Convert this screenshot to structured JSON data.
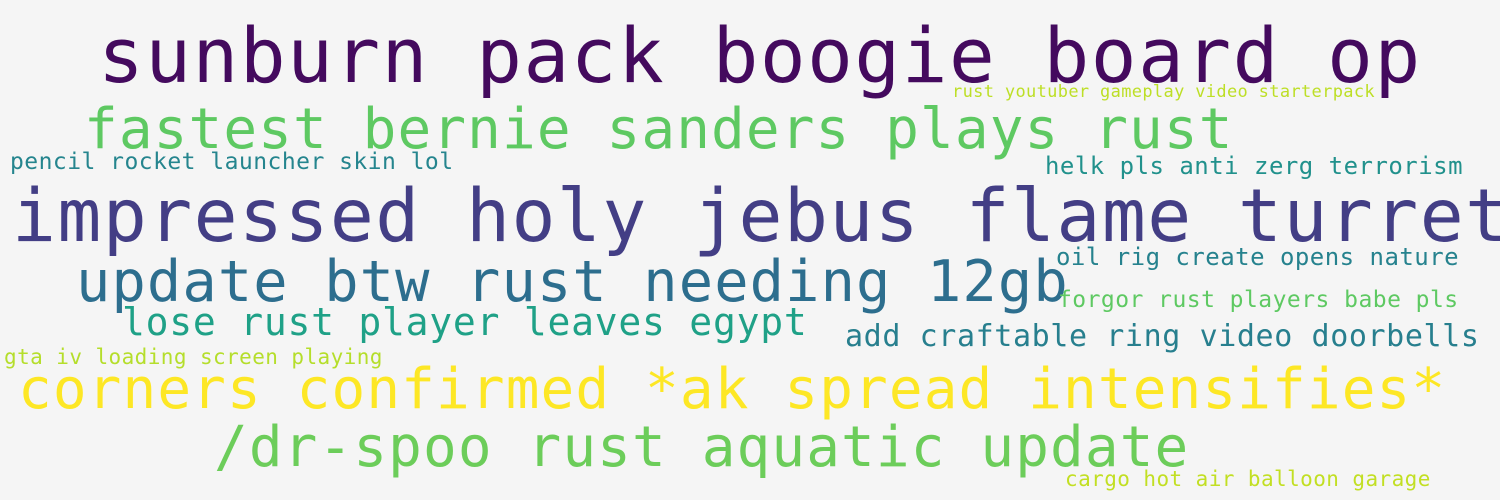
{
  "words": [
    {
      "text": "sunburn pack boogie board op",
      "color": "#440a5e"
    },
    {
      "text": "rust youtuber gameplay video starterpack",
      "color": "#bddf26"
    },
    {
      "text": "fastest bernie sanders plays rust",
      "color": "#5ec962"
    },
    {
      "text": "pencil rocket launcher skin lol",
      "color": "#25858e"
    },
    {
      "text": "helk pls anti zerg terrorism",
      "color": "#21918c"
    },
    {
      "text": "impressed holy jebus flame turret",
      "color": "#433e85"
    },
    {
      "text": "oil rig create opens nature",
      "color": "#26828e"
    },
    {
      "text": "update btw rust needing 12gb",
      "color": "#2d6e8e"
    },
    {
      "text": "forgor rust players babe pls",
      "color": "#5ec962"
    },
    {
      "text": "lose rust player leaves egypt",
      "color": "#1fa187"
    },
    {
      "text": "add craftable ring video doorbells",
      "color": "#277f8e"
    },
    {
      "text": "gta iv loading screen playing",
      "color": "#b5de2b"
    },
    {
      "text": "corners confirmed *ak spread intensifies*",
      "color": "#fde725"
    },
    {
      "text": "/dr-spoo rust aquatic update",
      "color": "#6ccd5a"
    },
    {
      "text": "cargo hot air balloon garage",
      "color": "#c2df23"
    }
  ]
}
